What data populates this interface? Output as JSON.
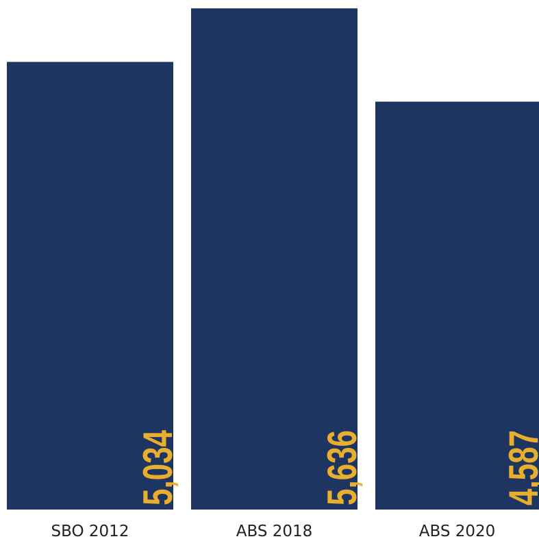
{
  "chart_data": {
    "type": "bar",
    "categories": [
      "SBO 2012",
      "ABS 2018",
      "ABS 2020"
    ],
    "values": [
      5034,
      5636,
      4587
    ],
    "value_labels": [
      "5,034",
      "5,636",
      "4,587"
    ],
    "title": "",
    "xlabel": "",
    "ylabel": "",
    "ylim": [
      0,
      5730
    ],
    "grid": false,
    "legend": "none"
  },
  "colors": {
    "bar": "#1e3461",
    "value_label": "#e8ae2e",
    "category_label": "#222222",
    "background": "#ffffff"
  }
}
